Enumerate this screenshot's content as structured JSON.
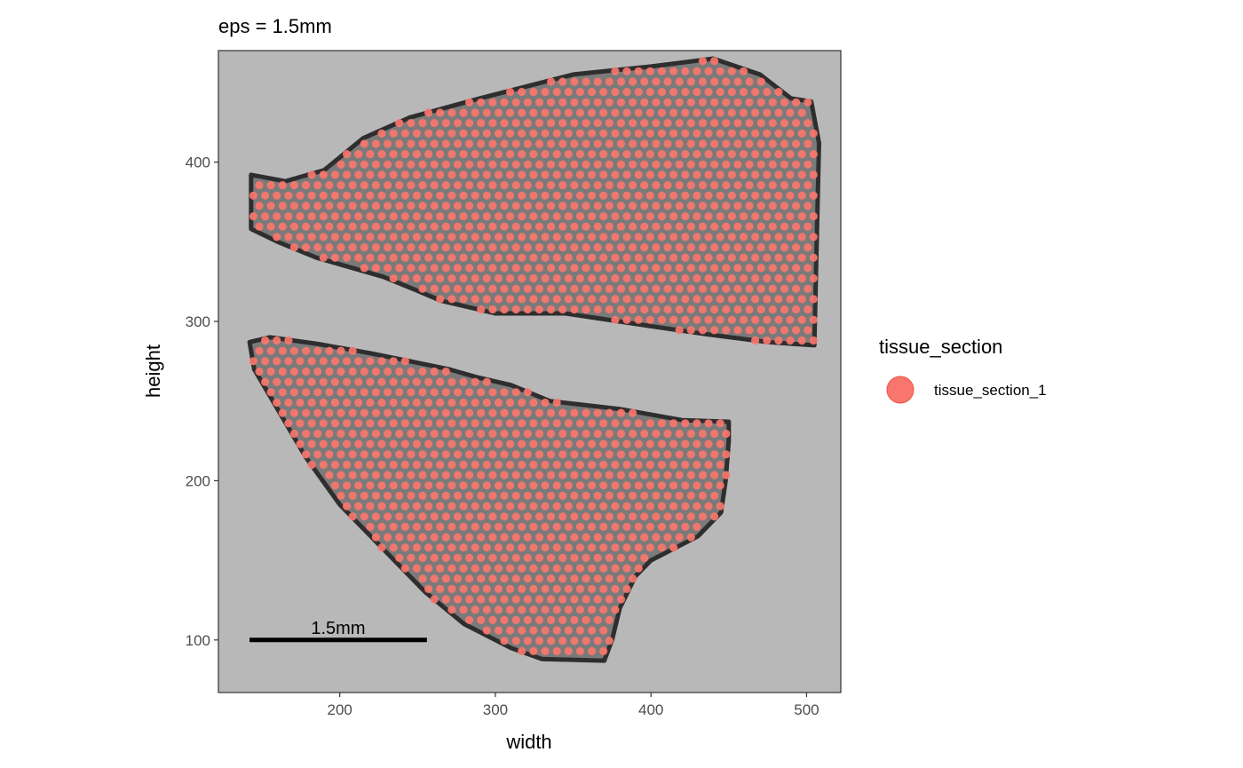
{
  "chart_data": {
    "type": "scatter",
    "title": "eps = 1.5mm",
    "xlabel": "width",
    "ylabel": "height",
    "xlim": [
      122,
      522
    ],
    "ylim": [
      67,
      470
    ],
    "x_ticks": [
      200,
      300,
      400,
      500
    ],
    "y_ticks": [
      100,
      200,
      300,
      400
    ],
    "grid": false,
    "background": "tissue-image-grayscale",
    "legend": {
      "title": "tissue_section",
      "position": "right",
      "entries": [
        {
          "label": "tissue_section_1",
          "color": "#F8766D"
        }
      ]
    },
    "series": [
      {
        "name": "tissue_section_1",
        "color": "#F8766D",
        "regions": [
          {
            "section": "upper",
            "polygon": [
              [
                143,
                358
              ],
              [
                143,
                392
              ],
              [
                165,
                388
              ],
              [
                190,
                395
              ],
              [
                215,
                415
              ],
              [
                245,
                428
              ],
              [
                290,
                440
              ],
              [
                350,
                455
              ],
              [
                400,
                460
              ],
              [
                440,
                465
              ],
              [
                470,
                455
              ],
              [
                490,
                440
              ],
              [
                503,
                438
              ],
              [
                508,
                412
              ],
              [
                507,
                370
              ],
              [
                505,
                285
              ],
              [
                475,
                287
              ],
              [
                435,
                292
              ],
              [
                400,
                297
              ],
              [
                345,
                305
              ],
              [
                300,
                305
              ],
              [
                265,
                313
              ],
              [
                248,
                320
              ],
              [
                228,
                328
              ],
              [
                185,
                340
              ],
              [
                160,
                350
              ]
            ]
          },
          {
            "section": "lower",
            "polygon": [
              [
                142,
                287
              ],
              [
                155,
                290
              ],
              [
                185,
                286
              ],
              [
                220,
                280
              ],
              [
                245,
                275
              ],
              [
                270,
                270
              ],
              [
                288,
                265
              ],
              [
                310,
                260
              ],
              [
                335,
                250
              ],
              [
                380,
                245
              ],
              [
                420,
                238
              ],
              [
                450,
                237
              ],
              [
                450,
                225
              ],
              [
                448,
                200
              ],
              [
                445,
                180
              ],
              [
                430,
                165
              ],
              [
                400,
                150
              ],
              [
                390,
                140
              ],
              [
                380,
                120
              ],
              [
                375,
                100
              ],
              [
                370,
                87
              ],
              [
                330,
                88
              ],
              [
                310,
                95
              ],
              [
                280,
                110
              ],
              [
                255,
                130
              ],
              [
                230,
                155
              ],
              [
                200,
                185
              ],
              [
                178,
                215
              ],
              [
                160,
                245
              ],
              [
                145,
                270
              ]
            ]
          }
        ],
        "spacing_x": 7.5,
        "spacing_y": 6.5
      }
    ],
    "annotations": [
      {
        "type": "scalebar",
        "label": "1.5mm",
        "x_start": 142,
        "x_end": 256,
        "y": 100
      }
    ]
  }
}
